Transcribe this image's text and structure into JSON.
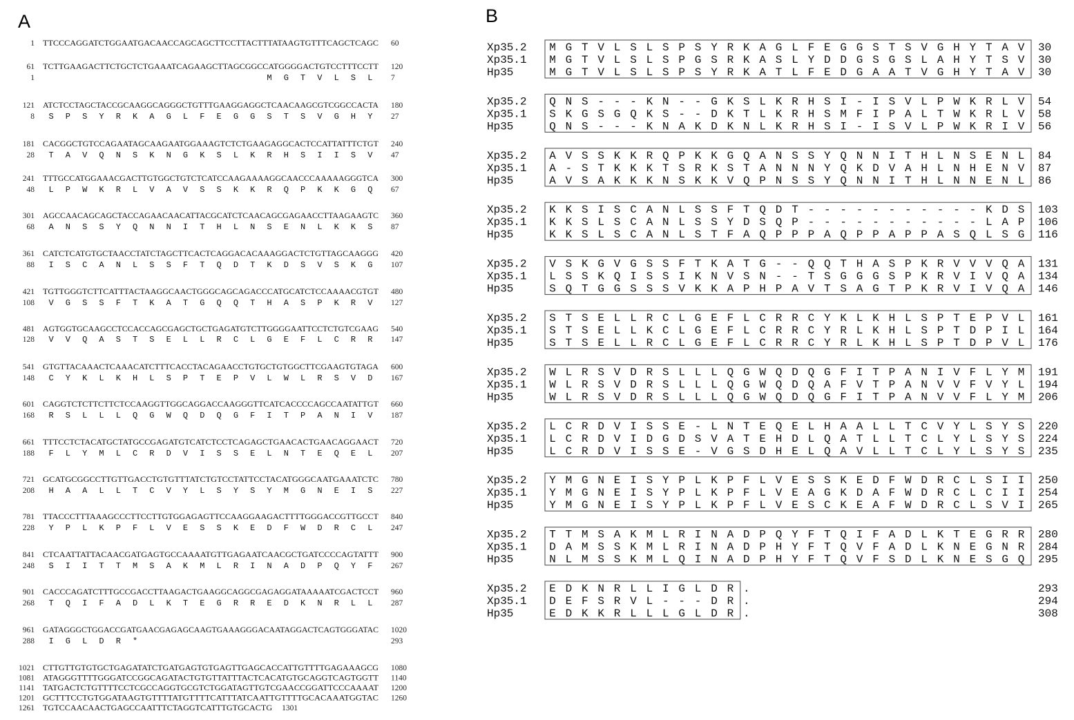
{
  "panel_a": {
    "label": "A",
    "nucleotide_rows": [
      {
        "start": "1",
        "seq": "TTCCCAGGATCTGGAATGACAACCAGCAGCTTCCTTACTTTATAAGTGTTTCAGCTCAGC",
        "end": "60"
      },
      {
        "start": "61",
        "seq": "TCTTGAAGACTTCTGCTCTGAAATCAGAAGCTTAGCGGCCATGGGGACTGTCCTTTCCTT",
        "end": "120"
      },
      {
        "start": "121",
        "seq": "ATCTCCTAGCTACCGCAAGGCAGGGCTGTTTGAAGGAGGCTCAACAAGCGTCGGCCACTA",
        "end": "180"
      },
      {
        "start": "181",
        "seq": "CACGGCTGTCCAGAATAGCAAGAATGGAAAGTCTCTGAAGAGGCACTCCATTATTTCTGT",
        "end": "240"
      },
      {
        "start": "241",
        "seq": "TTTGCCATGGAAACGACTTGTGGCTGTCTCATCCAAGAAAAGGCAACCCAAAAAGGGTCA",
        "end": "300"
      },
      {
        "start": "301",
        "seq": "AGCCAACAGCAGCTACCAGAACAACATTACGCATCTCAACAGCGAGAACCTTAAGAAGTC",
        "end": "360"
      },
      {
        "start": "361",
        "seq": "CATCTCATGTGCTAACCTATCTAGCTTCACTCAGGACACAAAGGACTCTGTTAGCAAGGG",
        "end": "420"
      },
      {
        "start": "421",
        "seq": "TGTTGGGTCTTCATTTACTAAGGCAACTGGGCAGCAGACCCATGCATCTCCAAAACGTGT",
        "end": "480"
      },
      {
        "start": "481",
        "seq": "AGTGGTGCAAGCCTCCACCAGCGAGCTGCTGAGATGTCTTGGGGAATTCCTCTGTCGAAG",
        "end": "540"
      },
      {
        "start": "541",
        "seq": "GTGTTACAAACTCAAACATCTTTCACCTACAGAACCTGTGCTGTGGCTTCGAAGTGTAGA",
        "end": "600"
      },
      {
        "start": "601",
        "seq": "CAGGTCTCTTCTTCTCCAAGGTTGGCAGGACCAAGGGTTCATCACCCCAGCCAATATTGT",
        "end": "660"
      },
      {
        "start": "661",
        "seq": "TTTCCTCTACATGCTATGCCGAGATGTCATCTCCTCAGAGCTGAACACTGAACAGGAACT",
        "end": "720"
      },
      {
        "start": "721",
        "seq": "GCATGCGGCCTTGTTGACCTGTGTTTATCTGTCCTATTCCTACATGGGCAATGAAATCTC",
        "end": "780"
      },
      {
        "start": "781",
        "seq": "TTACCCTTTAAAGCCCTTCCTTGTGGAGAGTTCCAAGGAAGACTTTTGGGACCGTTGCCT",
        "end": "840"
      },
      {
        "start": "841",
        "seq": "CTCAATTATTACAACGATGAGTGCCAAAATGTTGAGAATCAACGCTGATCCCCAGTATTT",
        "end": "900"
      },
      {
        "start": "901",
        "seq": "CACCCAGATCTTTGCCGACCTTAAGACTGAAGGCAGGCGAGAGGATAAAAATCGACTCCT",
        "end": "960"
      },
      {
        "start": "961",
        "seq": "GATAGGGCTGGACCGATGAACGAGAGCAAGTGAAAGGGACAATAGGACTCAGTGGGATAC",
        "end": "1020"
      },
      {
        "start": "1021",
        "seq": "CTTGTTGTGTGCTGAGATATCTGATGAGTGTGAGTTGAGCACCATTGTTTTGAGAAAGCG",
        "end": "1080"
      },
      {
        "start": "1081",
        "seq": "ATAGGGTTTTGGGATCCGGCAGATACTGTGTTATTTACTCACATGTGCAGGTCAGTGGTT",
        "end": "1140"
      },
      {
        "start": "1141",
        "seq": "TATGACTCTGTTTTCCTCGCCAGGTGCGTCTGGATAGTTGTCGAACCGGATTCCCAAAAT",
        "end": "1200"
      },
      {
        "start": "1201",
        "seq": "GCTTTCCTGTGGATAAGTGTTTTATGTTTTCATTTATCAATTGTTTTGCACAAATGGTAC",
        "end": "1260"
      },
      {
        "start": "1261",
        "seq": "TGTCCAACAACTGAGCCAATTTCTAGGTCATTTGTGCACTG",
        "end": "1301"
      }
    ],
    "protein_rows": [
      {
        "start": "1",
        "seq": "MGTVLSL",
        "end": "7"
      },
      {
        "start": "8",
        "seq": "SPSYRKAGLFEGGSTSVGHY",
        "end": "27"
      },
      {
        "start": "28",
        "seq": "TAVQNSKNGKSLKRHSIISV",
        "end": "47"
      },
      {
        "start": "48",
        "seq": "LPWKRLVAVSSKKRQPKKGQ",
        "end": "67"
      },
      {
        "start": "68",
        "seq": "ANSSYQNNITHLNSENLKKS",
        "end": "87"
      },
      {
        "start": "88",
        "seq": "ISCANLSSFTQDTKDSVSKG",
        "end": "107"
      },
      {
        "start": "108",
        "seq": "VGSSFTKATGQQTHASPKRV",
        "end": "127"
      },
      {
        "start": "128",
        "seq": "VVQASTSELLRCLGEFLCRR",
        "end": "147"
      },
      {
        "start": "148",
        "seq": "CYKLKHLSPTEPVLWLRSVD",
        "end": "167"
      },
      {
        "start": "168",
        "seq": "RSLLLQGWQDQGFITPANIV",
        "end": "187"
      },
      {
        "start": "188",
        "seq": "FLYMLCRDVISSELNTEQEL",
        "end": "207"
      },
      {
        "start": "208",
        "seq": "HAALLTCVYLSYSYMGNEIS",
        "end": "227"
      },
      {
        "start": "228",
        "seq": "YPLKPFLVESSKEDFWDRCL",
        "end": "247"
      },
      {
        "start": "248",
        "seq": "SIITTMSAKMLRINADPQYF",
        "end": "267"
      },
      {
        "start": "268",
        "seq": "TQIFADLKTEGRREDKNRLL",
        "end": "287"
      },
      {
        "start": "288",
        "seq": "IGLDR*",
        "end": "293"
      }
    ]
  },
  "panel_b": {
    "label": "B",
    "sequence_names": [
      "Xp35.2",
      "Xp35.1",
      "Hp35"
    ],
    "blocks": [
      {
        "rows": [
          {
            "seq": "MGTVLSLSPSYRKAGLFEGGSTSVGHYTAV",
            "end": "30"
          },
          {
            "seq": "MGTVLSLSPGSRKASLYDDGSGSLAHYTSV",
            "end": "30"
          },
          {
            "seq": "MGTVLSLSPSYRKATLFEDGAATVGHYTAV",
            "end": "30"
          }
        ]
      },
      {
        "rows": [
          {
            "seq": "QNS---KN--GKSLKRHSI-ISVLPWKRLV",
            "end": "54"
          },
          {
            "seq": "SKGSGQKS--DKTLKRHSMFIPALTWKRLV",
            "end": "58"
          },
          {
            "seq": "QNS---KNAKDKNLKRHSI-ISVLPWKRIV",
            "end": "56"
          }
        ]
      },
      {
        "rows": [
          {
            "seq": "AVSSKKRQPKKGQANSSYQNNITHLNSENL",
            "end": "84"
          },
          {
            "seq": "A-STKKKTSRKSTANNNYQKDVAHLNHENV",
            "end": "87"
          },
          {
            "seq": "AVSAKKKNSKKVQPNSSYQNNITHLNNENL",
            "end": "86"
          }
        ]
      },
      {
        "rows": [
          {
            "seq": "KKSISCANLSSFTQDT-----------KDS",
            "end": "103"
          },
          {
            "seq": "KKSLSCANLSSYDSQP-----------LAP",
            "end": "106"
          },
          {
            "seq": "KKSLSCANLSTFAQPPPAQPPAPPASQLSG",
            "end": "116"
          }
        ]
      },
      {
        "rows": [
          {
            "seq": "VSKGVGSSFTKATG--QQTHASPKRVVVQA",
            "end": "131"
          },
          {
            "seq": "LSSKQISSIKNVSN--TSGGGSPKRVIVQA",
            "end": "134"
          },
          {
            "seq": "SQTGGSSSVKKAPHPAVTSAGTPKRVIVQA",
            "end": "146"
          }
        ]
      },
      {
        "rows": [
          {
            "seq": "STSELLRCLGEFLCRRCYKLKHLSPTEPVL",
            "end": "161"
          },
          {
            "seq": "STSELLKCLGEFLCRRCYRLKHLSPTDPIL",
            "end": "164"
          },
          {
            "seq": "STSELLRCLGEFLCRRCYRLKHLSPTDPVL",
            "end": "176"
          }
        ]
      },
      {
        "rows": [
          {
            "seq": "WLRSVDRSLLLQGWQDQGFITPANIVFLYM",
            "end": "191"
          },
          {
            "seq": "WLRSVDRSLLLQGWQDQAFVTPANVVFVYL",
            "end": "194"
          },
          {
            "seq": "WLRSVDRSLLLQGWQDQGFITPANVVFLYM",
            "end": "206"
          }
        ]
      },
      {
        "rows": [
          {
            "seq": "LCRDVISSE-LNTEQELHAALLTCVYLSYS",
            "end": "220"
          },
          {
            "seq": "LCRDVIDGDSVATEHDLQATLLTCLYLSYS",
            "end": "224"
          },
          {
            "seq": "LCRDVISSE-VGSDHELQAVLLTCLYLSYS",
            "end": "235"
          }
        ]
      },
      {
        "rows": [
          {
            "seq": "YMGNEISYPLKPFLVESSKEDFWDRCLSII",
            "end": "250"
          },
          {
            "seq": "YMGNEISYPLKPFLVEAGKDAFWDRCLCII",
            "end": "254"
          },
          {
            "seq": "YMGNEISYPLKPFLVESCKEAFWDRCLSVI",
            "end": "265"
          }
        ]
      },
      {
        "rows": [
          {
            "seq": "TTMSAKMLRINADPQYFTQIFADLKTEGRR",
            "end": "280"
          },
          {
            "seq": "DAMSSKMLRINADPHYFTQVFADLKNEGNR",
            "end": "284"
          },
          {
            "seq": "NLMSSKMLQINADPHYFTQVFSDLKNESGQ",
            "end": "295"
          }
        ]
      },
      {
        "rows": [
          {
            "seq": "EDKNRLLIGLDR.",
            "end": "293"
          },
          {
            "seq": "DEFSRVL---DR.",
            "end": "294"
          },
          {
            "seq": "EDKKRLLLGLDR.",
            "end": "308"
          }
        ]
      }
    ]
  }
}
